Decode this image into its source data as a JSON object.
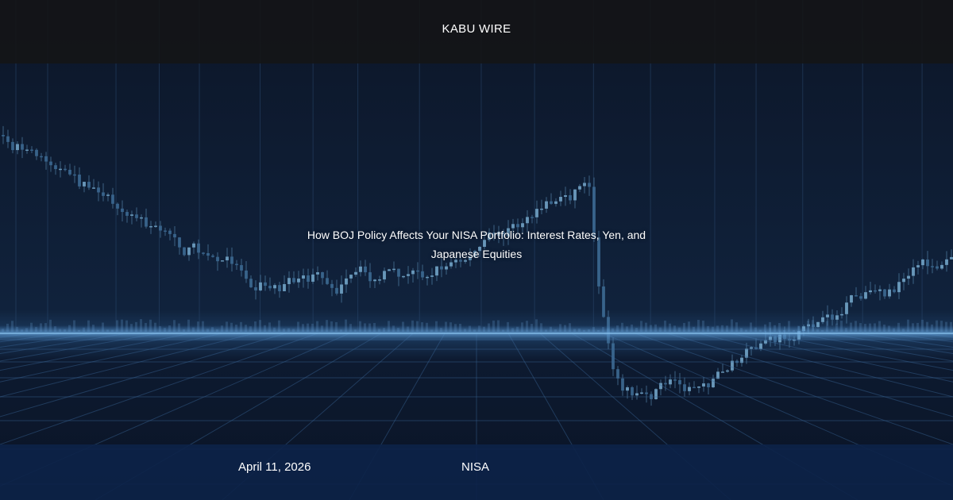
{
  "header": {
    "brand": "KABU WIRE"
  },
  "article": {
    "title": "How BOJ Policy Affects Your NISA Portfolio: Interest Rates, Yen, and Japanese Equities",
    "date": "April 11, 2026",
    "category": "NISA"
  }
}
